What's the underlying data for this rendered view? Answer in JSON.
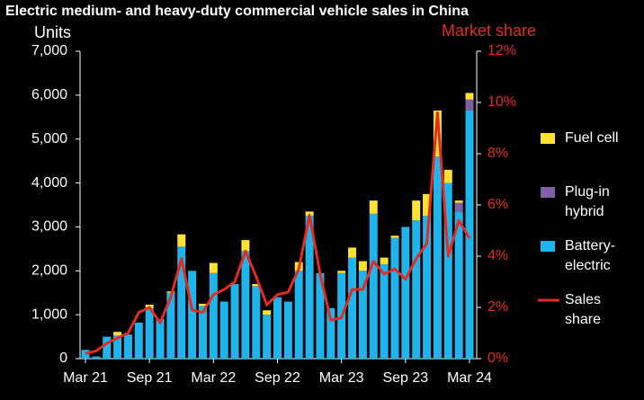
{
  "chart_data": {
    "type": "bar",
    "title": "Electric medium- and heavy-duty commercial vehicle sales in China",
    "y_label": "Units",
    "y2_label": "Market share",
    "categories": [
      "Mar 21",
      null,
      null,
      null,
      null,
      null,
      "Sep 21",
      null,
      null,
      null,
      null,
      null,
      "Mar 22",
      null,
      null,
      null,
      null,
      null,
      "Sep 22",
      null,
      null,
      null,
      null,
      null,
      "Mar 23",
      null,
      null,
      null,
      null,
      null,
      "Sep 23",
      null,
      null,
      null,
      null,
      null,
      "Mar 24"
    ],
    "series": [
      {
        "name": "Fuel cell",
        "color": "#ffe033",
        "values": [
          0,
          0,
          0,
          80,
          0,
          0,
          80,
          0,
          30,
          280,
          0,
          50,
          230,
          0,
          0,
          250,
          50,
          100,
          0,
          0,
          200,
          100,
          0,
          0,
          50,
          230,
          220,
          300,
          150,
          50,
          0,
          450,
          500,
          1050,
          300,
          50,
          150
        ]
      },
      {
        "name": "Plug-in hybrid",
        "color": "#7f5fa8",
        "values": [
          0,
          0,
          0,
          0,
          0,
          0,
          0,
          0,
          0,
          0,
          0,
          0,
          0,
          0,
          0,
          0,
          0,
          0,
          0,
          0,
          0,
          0,
          0,
          0,
          0,
          0,
          0,
          0,
          0,
          0,
          0,
          0,
          0,
          0,
          0,
          200,
          250
        ]
      },
      {
        "name": "Battery-electric",
        "color": "#1fb4ec",
        "values": [
          200,
          50,
          500,
          530,
          550,
          820,
          1150,
          900,
          1500,
          2550,
          2000,
          1200,
          1950,
          1300,
          1700,
          2450,
          1650,
          1000,
          1400,
          1300,
          2000,
          3250,
          1950,
          1150,
          1950,
          2300,
          2000,
          3300,
          2150,
          2750,
          3000,
          3150,
          3250,
          4600,
          4000,
          3350,
          5650
        ]
      },
      {
        "name": "Sales share",
        "color": "#e32b20",
        "axis": "y2",
        "type": "line",
        "values": [
          0.2,
          0.3,
          0.6,
          0.8,
          1.0,
          1.8,
          2.0,
          1.4,
          2.4,
          3.9,
          1.9,
          1.8,
          2.5,
          2.7,
          3.0,
          4.2,
          3.2,
          2.1,
          2.5,
          2.6,
          3.5,
          5.6,
          3.3,
          1.5,
          1.6,
          2.7,
          2.7,
          3.8,
          3.3,
          3.5,
          3.1,
          3.9,
          4.5,
          9.6,
          4.0,
          5.4,
          4.7
        ]
      }
    ],
    "ylim": [
      0,
      7000
    ],
    "yticks": [
      0,
      {
        "value": 1000,
        "label": "1,000"
      },
      {
        "value": 2000,
        "label": "2,000"
      },
      {
        "value": 3000,
        "label": "3,000"
      },
      {
        "value": 4000,
        "label": "4,000"
      },
      {
        "value": 5000,
        "label": "5,000"
      },
      {
        "value": 6000,
        "label": "6,000"
      },
      {
        "value": 7000,
        "label": "7,000"
      }
    ],
    "y2lim": [
      0,
      12
    ],
    "y2ticks": [
      {
        "value": 0,
        "label": "0%"
      },
      {
        "value": 2,
        "label": "2%"
      },
      {
        "value": 4,
        "label": "4%"
      },
      {
        "value": 6,
        "label": "6%"
      },
      {
        "value": 8,
        "label": "8%"
      },
      {
        "value": 10,
        "label": "10%"
      },
      {
        "value": 12,
        "label": "12%"
      }
    ],
    "stacked": true,
    "legend": "right"
  }
}
